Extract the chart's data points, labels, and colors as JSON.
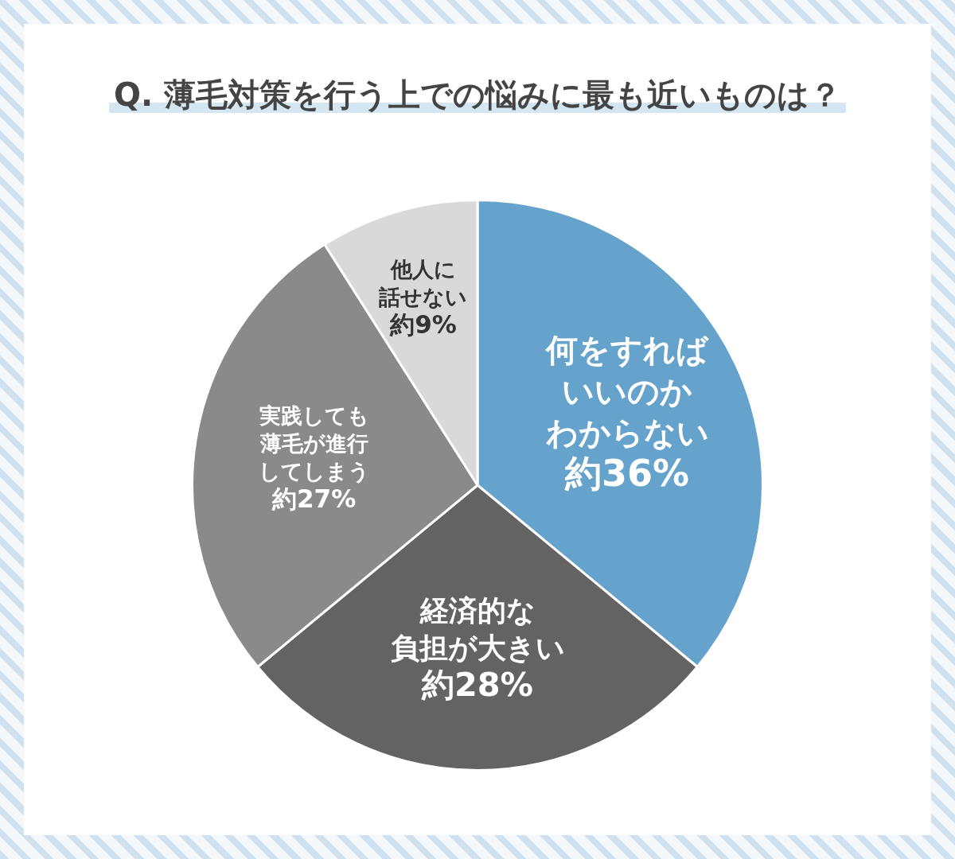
{
  "chart_data": {
    "type": "pie",
    "title": "Q. 薄毛対策を行う上での悩みに最も近いものは？",
    "categories": [
      "何をすればいいのかわからない",
      "経済的な負担が大きい",
      "実践しても薄毛が進行してしまう",
      "他人に話せない"
    ],
    "values": [
      36,
      28,
      27,
      9
    ],
    "colors": [
      "#66a3cc",
      "#636363",
      "#8a8a8a",
      "#d9d9d9"
    ],
    "value_labels": [
      "約36%",
      "約28%",
      "約27%",
      "約9%"
    ],
    "legend": false
  }
}
